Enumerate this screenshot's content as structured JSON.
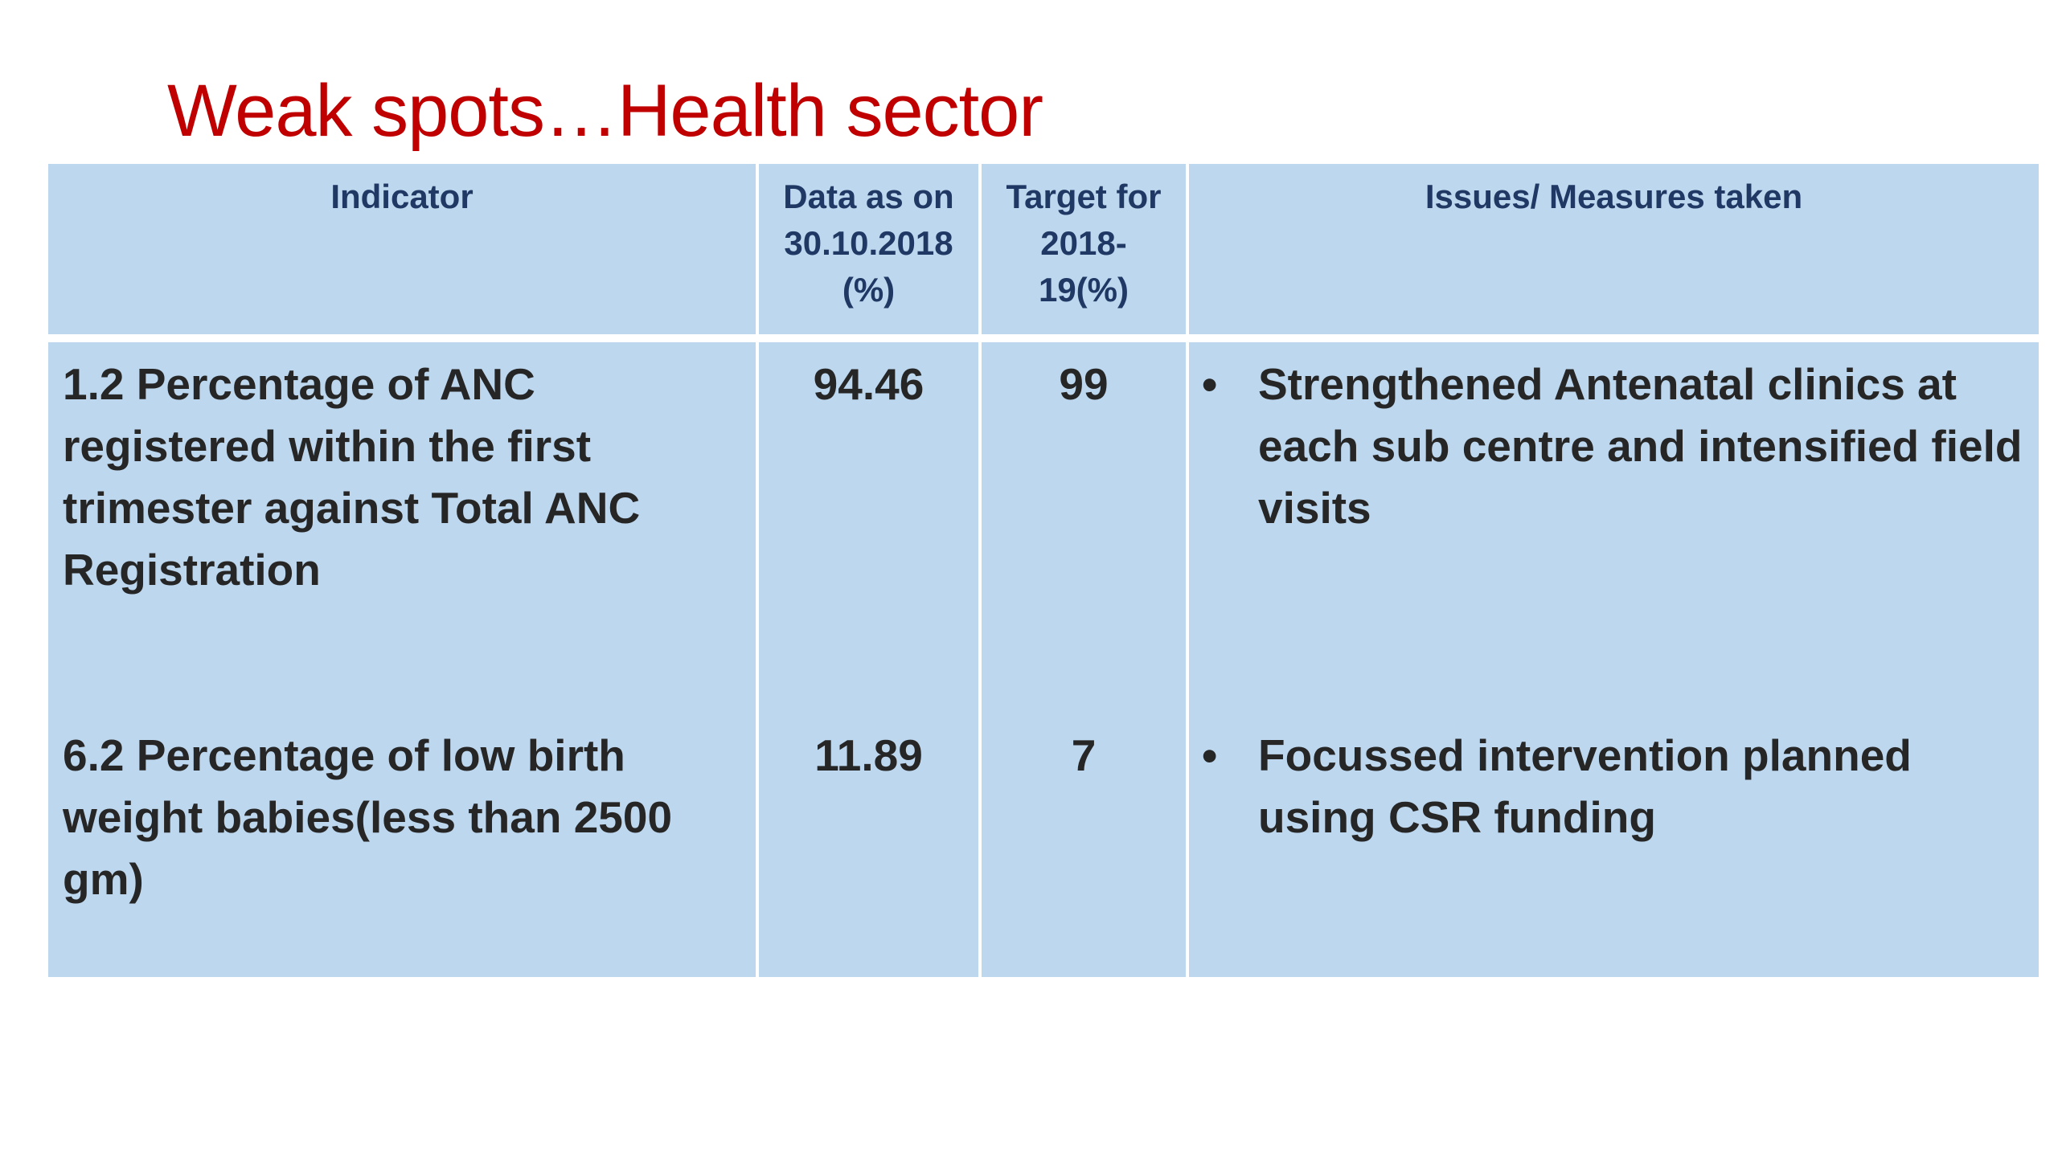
{
  "title": "Weak spots…Health sector",
  "table": {
    "headers": [
      "Indicator",
      "Data as on 30.10.2018 (%)",
      "Target for 2018-19(%)",
      "Issues/ Measures taken"
    ],
    "rows": [
      {
        "indicator": "1.2 Percentage of ANC registered within the first trimester against Total ANC Registration",
        "data": "94.46",
        "target": "99",
        "bullet": "•",
        "issue": "Strengthened Antenatal clinics at each sub centre and intensified field visits"
      },
      {
        "indicator": "6.2 Percentage of low birth weight babies(less than 2500 gm)",
        "data": "11.89",
        "target": "7",
        "bullet": "•",
        "issue": "Focussed intervention planned using CSR funding"
      }
    ]
  },
  "colors": {
    "title": "#c00000",
    "cell_background": "#bdd7ee",
    "header_text": "#1f3864",
    "body_text": "#262626"
  }
}
